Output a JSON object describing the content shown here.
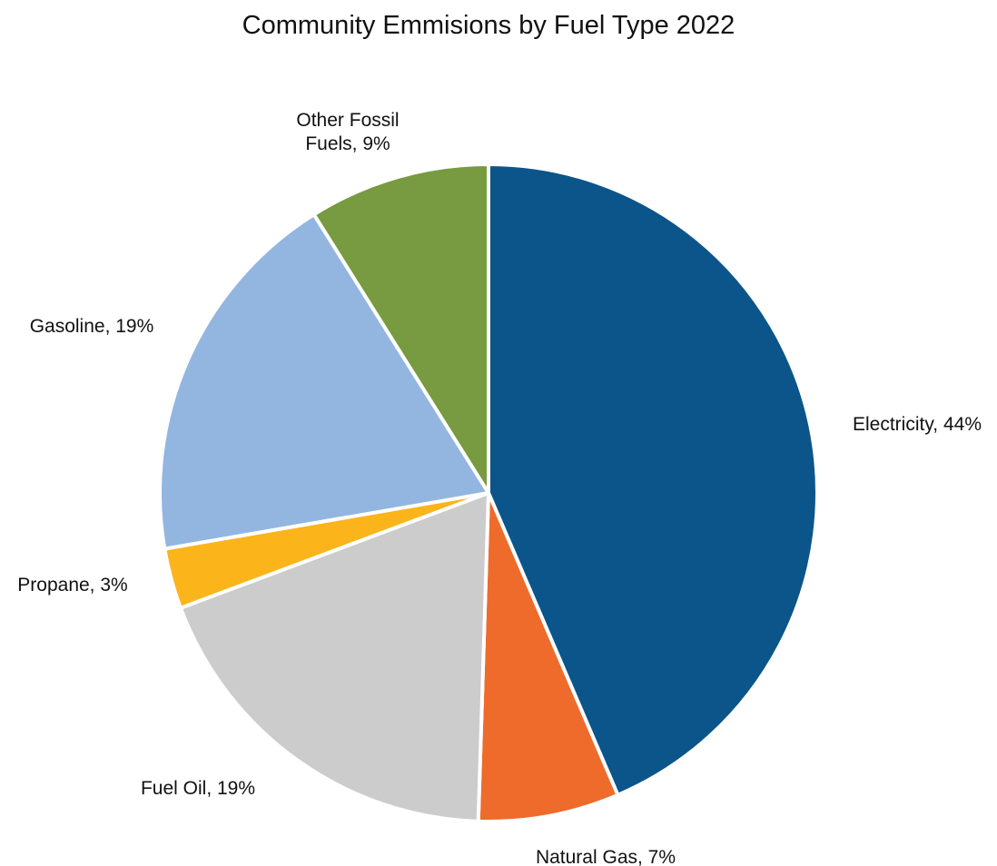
{
  "chart_data": {
    "type": "pie",
    "title": "Community Emmisions by Fuel Type 2022",
    "start_angle_deg": 0,
    "direction": "clockwise",
    "slices": [
      {
        "name": "Electricity",
        "label": "Electricity, 44%",
        "value": 44,
        "color": "#0b558a"
      },
      {
        "name": "Natural Gas",
        "label": "Natural Gas, 7%",
        "value": 7,
        "color": "#ee6b2b"
      },
      {
        "name": "Fuel Oil",
        "label": "Fuel Oil, 19%",
        "value": 19,
        "color": "#cccccc"
      },
      {
        "name": "Propane",
        "label": "Propane, 3%",
        "value": 3,
        "color": "#fbb41a"
      },
      {
        "name": "Gasoline",
        "label": "Gasoline, 19%",
        "value": 19,
        "color": "#92b6e0"
      },
      {
        "name": "Other Fossil Fuels",
        "label_lines": [
          "Other Fossil",
          "Fuels, 9%"
        ],
        "value": 9,
        "color": "#789a40"
      }
    ],
    "legend": "none"
  }
}
